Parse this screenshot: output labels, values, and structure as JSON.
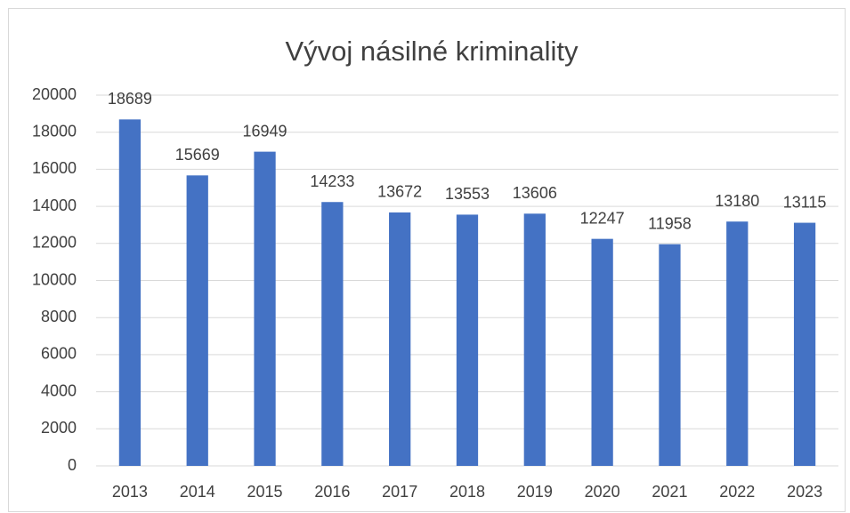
{
  "chart_data": {
    "type": "bar",
    "title": "Vývoj násilné kriminality",
    "categories": [
      "2013",
      "2014",
      "2015",
      "2016",
      "2017",
      "2018",
      "2019",
      "2020",
      "2021",
      "2022",
      "2023"
    ],
    "values": [
      18689,
      15669,
      16949,
      14233,
      13672,
      13553,
      13606,
      12247,
      11958,
      13180,
      13115
    ],
    "color": "#4472c4",
    "ylim": [
      0,
      20000
    ],
    "yticks": [
      0,
      2000,
      4000,
      6000,
      8000,
      10000,
      12000,
      14000,
      16000,
      18000,
      20000
    ],
    "grid": true
  }
}
